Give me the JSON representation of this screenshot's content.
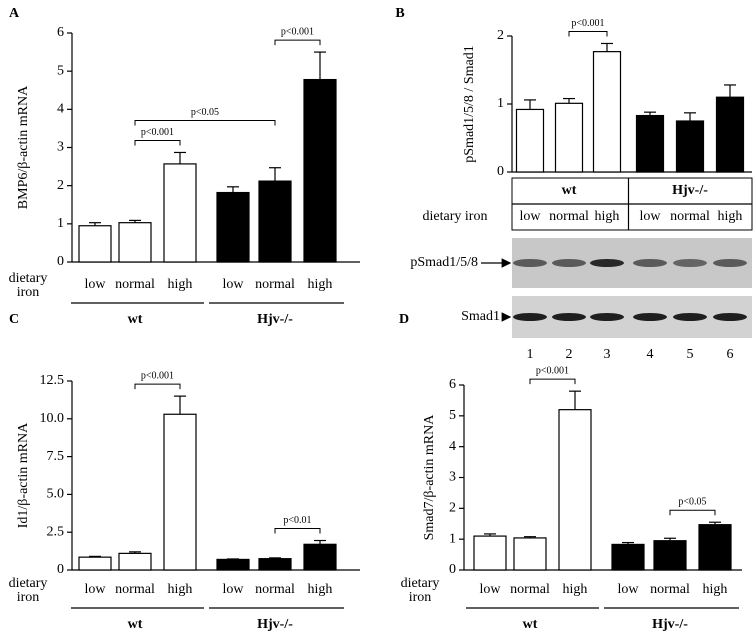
{
  "chart_data": [
    {
      "type": "bar",
      "panel": "A",
      "ylabel": "BMP6/β-actin mRNA",
      "xlabel": [
        "dietary",
        "iron"
      ],
      "categories": [
        "low",
        "normal",
        "high",
        "low",
        "normal",
        "high"
      ],
      "groups": [
        "wt",
        "Hjv-/-"
      ],
      "values": [
        0.95,
        1.03,
        2.57,
        1.82,
        2.12,
        4.78
      ],
      "errors": [
        0.08,
        0.06,
        0.3,
        0.15,
        0.35,
        0.72
      ],
      "colors": [
        "#ffffff",
        "#ffffff",
        "#ffffff",
        "#000000",
        "#000000",
        "#000000"
      ],
      "ylim": [
        0,
        6
      ],
      "yticks": [
        0,
        1,
        2,
        3,
        4,
        5,
        6
      ],
      "annotations": [
        {
          "text": "p<0.001",
          "from": 1,
          "to": 2
        },
        {
          "text": "p<0.05",
          "from": 1,
          "to": 4
        },
        {
          "text": "p<0.001",
          "from": 4,
          "to": 5
        }
      ]
    },
    {
      "type": "bar",
      "panel": "B",
      "ylabel": "pSmad1/5/8 / Smad1",
      "xlabel": [
        "dietary iron"
      ],
      "categories": [
        "low",
        "normal",
        "high",
        "low",
        "normal",
        "high"
      ],
      "groups": [
        "wt",
        "Hjv-/-"
      ],
      "values": [
        0.92,
        1.01,
        1.77,
        0.83,
        0.75,
        1.1
      ],
      "errors": [
        0.14,
        0.07,
        0.12,
        0.05,
        0.12,
        0.18
      ],
      "colors": [
        "#ffffff",
        "#ffffff",
        "#ffffff",
        "#000000",
        "#000000",
        "#000000"
      ],
      "ylim": [
        0,
        2
      ],
      "yticks": [
        0,
        1,
        2
      ],
      "annotations": [
        {
          "text": "p<0.001",
          "from": 1,
          "to": 2
        }
      ],
      "blot": {
        "rows": [
          "pSmad1/5/8",
          "Smad1"
        ],
        "lanes": [
          "1",
          "2",
          "3",
          "4",
          "5",
          "6"
        ]
      }
    },
    {
      "type": "bar",
      "panel": "C",
      "ylabel": "Id1/β-actin mRNA",
      "xlabel": [
        "dietary",
        "iron"
      ],
      "categories": [
        "low",
        "normal",
        "high",
        "low",
        "normal",
        "high"
      ],
      "groups": [
        "wt",
        "Hjv-/-"
      ],
      "values": [
        0.85,
        1.1,
        10.3,
        0.7,
        0.75,
        1.7
      ],
      "errors": [
        0.05,
        0.1,
        1.2,
        0.03,
        0.05,
        0.25
      ],
      "colors": [
        "#ffffff",
        "#ffffff",
        "#ffffff",
        "#000000",
        "#000000",
        "#000000"
      ],
      "ylim": [
        0,
        12.5
      ],
      "yticks": [
        0,
        2.5,
        {
          "value": 5,
          "label": "5.0"
        },
        7.5,
        {
          "value": 10,
          "label": "10.0"
        },
        12.5
      ],
      "annotations": [
        {
          "text": "p<0.001",
          "from": 1,
          "to": 2
        },
        {
          "text": "p<0.01",
          "from": 4,
          "to": 5
        }
      ]
    },
    {
      "type": "bar",
      "panel": "D",
      "ylabel": "Smad7/β-actin mRNA",
      "xlabel": [
        "dietary",
        "iron"
      ],
      "categories": [
        "low",
        "normal",
        "high",
        "low",
        "normal",
        "high"
      ],
      "groups": [
        "wt",
        "Hjv-/-"
      ],
      "values": [
        1.1,
        1.04,
        5.2,
        0.83,
        0.95,
        1.47
      ],
      "errors": [
        0.07,
        0.04,
        0.6,
        0.06,
        0.08,
        0.08
      ],
      "colors": [
        "#ffffff",
        "#ffffff",
        "#ffffff",
        "#000000",
        "#000000",
        "#000000"
      ],
      "ylim": [
        0,
        6
      ],
      "yticks": [
        0,
        1,
        2,
        3,
        4,
        5,
        6
      ],
      "annotations": [
        {
          "text": "p<0.001",
          "from": 1,
          "to": 2
        },
        {
          "text": "p<0.05",
          "from": 4,
          "to": 5
        }
      ]
    }
  ]
}
